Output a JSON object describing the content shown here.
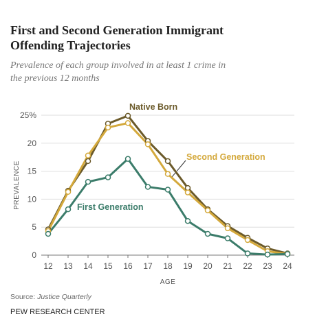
{
  "chart_data": {
    "type": "line",
    "title": "First and Second Generation Immigrant Offending Trajectories",
    "subtitle": "Prevalence of each group involved in at least 1 crime in the previous 12 months",
    "x_label": "AGE",
    "y_label": "PREVALENCE",
    "source_label": "Source:",
    "source": "Justice Quarterly",
    "footer": "PEW RESEARCH CENTER",
    "x": [
      12,
      13,
      14,
      15,
      16,
      17,
      18,
      19,
      20,
      21,
      22,
      23,
      24
    ],
    "series": [
      {
        "name": "Native Born",
        "color": "#6b5a2a",
        "values": [
          4.6,
          11.5,
          16.8,
          23.5,
          24.9,
          20.4,
          16.8,
          12.0,
          8.2,
          5.2,
          3.1,
          1.2,
          0.3
        ]
      },
      {
        "name": "Second Generation",
        "color": "#d4a93c",
        "values": [
          4.3,
          11.3,
          17.8,
          22.8,
          23.6,
          19.8,
          14.5,
          11.2,
          8.0,
          4.8,
          2.7,
          0.7,
          0.2
        ]
      },
      {
        "name": "First Generation",
        "color": "#3b7c6a",
        "values": [
          3.8,
          8.2,
          13.1,
          13.9,
          17.2,
          12.2,
          11.7,
          6.1,
          3.8,
          3.0,
          0.3,
          0.1,
          0.2
        ]
      }
    ],
    "xlim": [
      11.655,
      24.345
    ],
    "ylim": [
      0,
      25
    ],
    "xticks": [
      12,
      13,
      14,
      15,
      16,
      17,
      18,
      19,
      20,
      21,
      22,
      23,
      24
    ],
    "yticks": [
      0,
      5,
      10,
      15,
      20,
      {
        "value": 25,
        "label": "25%"
      }
    ],
    "grid": true
  }
}
